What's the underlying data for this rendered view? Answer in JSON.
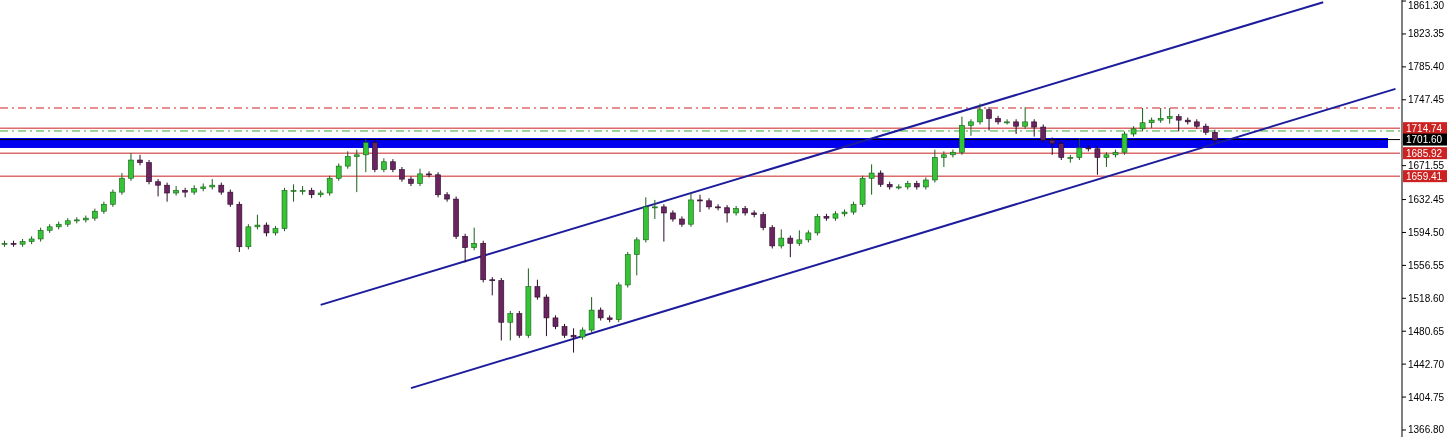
{
  "chart_data": {
    "type": "candlestick",
    "categories": [
      null,
      null,
      null,
      null,
      null,
      null,
      null,
      null,
      null,
      null,
      null,
      null,
      null,
      null,
      null,
      null,
      null,
      null,
      null,
      null,
      null,
      null,
      null,
      null,
      null,
      null,
      null,
      null,
      null,
      null,
      null,
      null,
      null,
      null,
      null,
      null,
      null,
      null,
      null,
      null,
      null,
      null,
      null,
      null,
      null,
      null,
      null,
      null,
      null,
      null,
      null,
      null,
      null,
      null,
      null,
      null,
      null,
      null,
      null,
      null,
      null,
      null,
      null,
      null,
      null,
      null,
      null,
      null,
      null,
      null,
      null,
      null,
      null,
      null,
      null,
      null,
      null,
      null,
      null,
      null,
      null,
      null,
      null,
      null,
      null,
      null,
      null,
      null,
      null,
      null,
      null,
      null,
      null,
      null,
      null,
      null,
      null,
      null,
      null,
      null,
      null,
      null,
      null,
      null,
      null,
      null,
      null,
      null,
      null,
      null,
      null,
      null,
      null,
      null,
      null,
      null,
      null,
      null,
      null,
      null,
      null,
      null,
      null,
      null,
      null,
      null,
      null,
      null,
      null,
      null,
      null,
      null,
      null,
      null,
      null,
      null,
      null,
      null,
      null,
      null,
      null,
      null,
      null,
      null,
      null,
      null,
      null,
      null,
      null,
      null,
      null,
      null,
      null,
      null,
      null
    ],
    "ohlc": [
      [
        1581,
        1585,
        1578,
        1582
      ],
      [
        1582,
        1585,
        1578,
        1581
      ],
      [
        1581,
        1587,
        1578,
        1584
      ],
      [
        1584,
        1590,
        1581,
        1587
      ],
      [
        1587,
        1600,
        1584,
        1597
      ],
      [
        1597,
        1604,
        1594,
        1601
      ],
      [
        1601,
        1607,
        1598,
        1604
      ],
      [
        1604,
        1611,
        1601,
        1608
      ],
      [
        1608,
        1612,
        1605,
        1609
      ],
      [
        1609,
        1614,
        1606,
        1611
      ],
      [
        1611,
        1622,
        1608,
        1619
      ],
      [
        1619,
        1630,
        1616,
        1627
      ],
      [
        1627,
        1644,
        1624,
        1641
      ],
      [
        1641,
        1663,
        1638,
        1657
      ],
      [
        1657,
        1686,
        1654,
        1678
      ],
      [
        1678,
        1684,
        1672,
        1675
      ],
      [
        1675,
        1678,
        1650,
        1653
      ],
      [
        1653,
        1656,
        1636,
        1649
      ],
      [
        1649,
        1652,
        1630,
        1640
      ],
      [
        1640,
        1648,
        1637,
        1643
      ],
      [
        1643,
        1646,
        1635,
        1641
      ],
      [
        1641,
        1649,
        1638,
        1645
      ],
      [
        1645,
        1651,
        1642,
        1647
      ],
      [
        1647,
        1656,
        1644,
        1649
      ],
      [
        1649,
        1652,
        1638,
        1641
      ],
      [
        1641,
        1644,
        1624,
        1627
      ],
      [
        1627,
        1630,
        1572,
        1578
      ],
      [
        1578,
        1604,
        1575,
        1601
      ],
      [
        1601,
        1615,
        1598,
        1603
      ],
      [
        1603,
        1606,
        1590,
        1594
      ],
      [
        1594,
        1602,
        1591,
        1599
      ],
      [
        1599,
        1646,
        1596,
        1643
      ],
      [
        1643,
        1650,
        1630,
        1643
      ],
      [
        1643,
        1648,
        1638,
        1643
      ],
      [
        1643,
        1646,
        1634,
        1638
      ],
      [
        1638,
        1643,
        1635,
        1640
      ],
      [
        1640,
        1660,
        1637,
        1657
      ],
      [
        1657,
        1674,
        1654,
        1671
      ],
      [
        1671,
        1688,
        1668,
        1682
      ],
      [
        1682,
        1690,
        1641,
        1684
      ],
      [
        1684,
        1702,
        1664,
        1698
      ],
      [
        1698,
        1701,
        1664,
        1667
      ],
      [
        1667,
        1680,
        1664,
        1676
      ],
      [
        1676,
        1679,
        1664,
        1667
      ],
      [
        1667,
        1670,
        1653,
        1656
      ],
      [
        1656,
        1659,
        1648,
        1651
      ],
      [
        1651,
        1668,
        1648,
        1662
      ],
      [
        1662,
        1665,
        1658,
        1661
      ],
      [
        1661,
        1664,
        1635,
        1638
      ],
      [
        1638,
        1641,
        1630,
        1633
      ],
      [
        1633,
        1636,
        1587,
        1590
      ],
      [
        1590,
        1593,
        1560,
        1577
      ],
      [
        1577,
        1600,
        1574,
        1582
      ],
      [
        1582,
        1585,
        1537,
        1540
      ],
      [
        1540,
        1543,
        1522,
        1539
      ],
      [
        1539,
        1542,
        1470,
        1491
      ],
      [
        1491,
        1504,
        1470,
        1501
      ],
      [
        1501,
        1504,
        1473,
        1476
      ],
      [
        1476,
        1553,
        1473,
        1532
      ],
      [
        1532,
        1540,
        1517,
        1520
      ],
      [
        1520,
        1523,
        1475,
        1496
      ],
      [
        1496,
        1499,
        1483,
        1486
      ],
      [
        1486,
        1489,
        1473,
        1476
      ],
      [
        1476,
        1484,
        1456,
        1474
      ],
      [
        1474,
        1485,
        1471,
        1482
      ],
      [
        1482,
        1520,
        1479,
        1505
      ],
      [
        1505,
        1508,
        1493,
        1496
      ],
      [
        1496,
        1499,
        1491,
        1494
      ],
      [
        1494,
        1537,
        1491,
        1534
      ],
      [
        1534,
        1572,
        1531,
        1569
      ],
      [
        1569,
        1589,
        1545,
        1586
      ],
      [
        1586,
        1635,
        1583,
        1624
      ],
      [
        1624,
        1632,
        1610,
        1624
      ],
      [
        1624,
        1627,
        1584,
        1617
      ],
      [
        1617,
        1620,
        1607,
        1610
      ],
      [
        1610,
        1613,
        1601,
        1604
      ],
      [
        1604,
        1640,
        1601,
        1632
      ],
      [
        1632,
        1638,
        1618,
        1631
      ],
      [
        1631,
        1634,
        1621,
        1624
      ],
      [
        1624,
        1627,
        1620,
        1623
      ],
      [
        1623,
        1626,
        1606,
        1617
      ],
      [
        1617,
        1625,
        1614,
        1622
      ],
      [
        1622,
        1625,
        1614,
        1617
      ],
      [
        1617,
        1620,
        1612,
        1615
      ],
      [
        1615,
        1618,
        1597,
        1600
      ],
      [
        1600,
        1603,
        1576,
        1579
      ],
      [
        1579,
        1598,
        1576,
        1588
      ],
      [
        1588,
        1591,
        1566,
        1582
      ],
      [
        1582,
        1597,
        1579,
        1586
      ],
      [
        1586,
        1597,
        1583,
        1594
      ],
      [
        1594,
        1616,
        1591,
        1613
      ],
      [
        1613,
        1616,
        1608,
        1611
      ],
      [
        1611,
        1619,
        1608,
        1616
      ],
      [
        1616,
        1621,
        1613,
        1618
      ],
      [
        1618,
        1630,
        1615,
        1627
      ],
      [
        1627,
        1660,
        1624,
        1657
      ],
      [
        1657,
        1673,
        1638,
        1663
      ],
      [
        1663,
        1666,
        1647,
        1650
      ],
      [
        1650,
        1653,
        1644,
        1647
      ],
      [
        1647,
        1650,
        1644,
        1647
      ],
      [
        1647,
        1654,
        1644,
        1651
      ],
      [
        1651,
        1654,
        1644,
        1647
      ],
      [
        1647,
        1658,
        1644,
        1655
      ],
      [
        1655,
        1690,
        1652,
        1681
      ],
      [
        1681,
        1688,
        1670,
        1684
      ],
      [
        1684,
        1690,
        1681,
        1687
      ],
      [
        1687,
        1728,
        1684,
        1718
      ],
      [
        1718,
        1725,
        1706,
        1722
      ],
      [
        1722,
        1743,
        1719,
        1736
      ],
      [
        1736,
        1739,
        1712,
        1726
      ],
      [
        1726,
        1729,
        1719,
        1722
      ],
      [
        1722,
        1725,
        1719,
        1722
      ],
      [
        1722,
        1725,
        1708,
        1717
      ],
      [
        1717,
        1739,
        1714,
        1722
      ],
      [
        1722,
        1725,
        1705,
        1716
      ],
      [
        1716,
        1719,
        1698,
        1701
      ],
      [
        1701,
        1704,
        1684,
        1697
      ],
      [
        1697,
        1700,
        1678,
        1681
      ],
      [
        1681,
        1684,
        1675,
        1681
      ],
      [
        1681,
        1703,
        1678,
        1692
      ],
      [
        1692,
        1695,
        1688,
        1691
      ],
      [
        1691,
        1694,
        1661,
        1681
      ],
      [
        1681,
        1687,
        1670,
        1684
      ],
      [
        1684,
        1690,
        1681,
        1687
      ],
      [
        1687,
        1711,
        1684,
        1708
      ],
      [
        1708,
        1717,
        1705,
        1714
      ],
      [
        1714,
        1738,
        1711,
        1721
      ],
      [
        1721,
        1727,
        1715,
        1724
      ],
      [
        1724,
        1738,
        1721,
        1726
      ],
      [
        1726,
        1738,
        1720,
        1728
      ],
      [
        1728,
        1731,
        1711,
        1724
      ],
      [
        1724,
        1727,
        1719,
        1722
      ],
      [
        1722,
        1725,
        1714,
        1717
      ],
      [
        1717,
        1720,
        1707,
        1710
      ],
      [
        1710,
        1713,
        1697,
        1701
      ],
      null,
      null,
      null,
      null,
      null,
      null,
      null,
      null,
      null,
      null,
      null,
      null,
      null,
      null,
      null,
      null,
      null,
      null,
      null,
      null
    ],
    "series": [
      {
        "type": "line",
        "color": "#1c1c9c",
        "values": [
          null,
          null,
          null,
          null,
          null,
          null,
          null,
          null,
          null,
          null,
          null,
          null,
          null,
          null,
          null,
          null,
          null,
          null,
          null,
          null,
          null,
          null,
          null,
          null,
          null,
          null,
          null,
          null,
          null,
          null,
          null,
          null,
          null,
          null,
          null,
          1511,
          null,
          null,
          null,
          null,
          null,
          null,
          null,
          null,
          null,
          null,
          null,
          null,
          null,
          null,
          null,
          null,
          null,
          null,
          null,
          null,
          null,
          null,
          null,
          null,
          null,
          null,
          null,
          null,
          null,
          null,
          null,
          null,
          null,
          null,
          null,
          null,
          null,
          null,
          null,
          null,
          null,
          null,
          null,
          null,
          null,
          null,
          null,
          null,
          null,
          null,
          null,
          null,
          null,
          null,
          null,
          null,
          null,
          null,
          null,
          null,
          null,
          null,
          null,
          null,
          null,
          null,
          null,
          null,
          null,
          null,
          null,
          null,
          null,
          null,
          null,
          null,
          null,
          null,
          null,
          null,
          null,
          null,
          null,
          null,
          null,
          null,
          null,
          null,
          null,
          null,
          null,
          null,
          null,
          null,
          null,
          null,
          null,
          null,
          null,
          null,
          null,
          null,
          null,
          null,
          null,
          null,
          null,
          null,
          null,
          null,
          1860,
          null,
          null,
          null,
          null,
          null,
          null,
          null,
          null
        ]
      },
      {
        "type": "line",
        "color": "#1c1c9c",
        "values": [
          null,
          null,
          null,
          null,
          null,
          null,
          null,
          null,
          null,
          null,
          null,
          null,
          null,
          null,
          null,
          null,
          null,
          null,
          null,
          null,
          null,
          null,
          null,
          null,
          null,
          null,
          null,
          null,
          null,
          null,
          null,
          null,
          null,
          null,
          null,
          null,
          null,
          null,
          null,
          null,
          null,
          null,
          null,
          null,
          null,
          1415,
          null,
          null,
          null,
          null,
          null,
          null,
          null,
          null,
          null,
          null,
          null,
          null,
          null,
          null,
          null,
          null,
          null,
          null,
          null,
          null,
          null,
          null,
          null,
          null,
          null,
          null,
          null,
          null,
          null,
          null,
          null,
          null,
          null,
          null,
          null,
          null,
          null,
          null,
          null,
          null,
          null,
          null,
          null,
          null,
          null,
          null,
          null,
          null,
          null,
          null,
          null,
          null,
          null,
          null,
          null,
          null,
          null,
          null,
          null,
          null,
          null,
          null,
          null,
          null,
          null,
          null,
          null,
          null,
          null,
          null,
          null,
          null,
          null,
          null,
          null,
          null,
          null,
          null,
          null,
          null,
          null,
          null,
          null,
          null,
          null,
          null,
          null,
          null,
          null,
          null,
          null,
          null,
          null,
          null,
          null,
          null,
          null,
          null,
          null,
          null,
          null,
          null,
          null,
          null,
          null,
          null,
          null,
          null,
          1760
        ]
      }
    ],
    "ylim": [
      1358.7,
      1862.5
    ],
    "yticks": [
      {
        "value": 1366.8,
        "label": "1366.80"
      },
      {
        "value": 1404.75,
        "label": "1404.75"
      },
      {
        "value": 1442.7,
        "label": "1442.70"
      },
      {
        "value": 1480.65,
        "label": "1480.65"
      },
      {
        "value": 1518.6,
        "label": "1518.60"
      },
      {
        "value": 1556.55,
        "label": "1556.55"
      },
      {
        "value": 1594.5,
        "label": "1594.50"
      },
      {
        "value": 1632.45,
        "label": "1632.45"
      },
      {
        "value": 1671.55,
        "label": "1671.55"
      },
      {
        "value": 1747.45,
        "label": "1747.45"
      },
      {
        "value": 1785.4,
        "label": "1785.40"
      },
      {
        "value": 1823.35,
        "label": "1823.35"
      },
      {
        "value": 1861.3,
        "label": "1861.30"
      }
    ],
    "ref_lines": [
      {
        "axis": "y",
        "value": 1738,
        "color": "#cc2222",
        "line_style": "dashed"
      },
      {
        "axis": "y",
        "value": 1714.74,
        "label": "1714.74",
        "color": "#cc2222",
        "line_style": "solid"
      },
      {
        "axis": "y",
        "value": 1711.5,
        "color": "#33aa33",
        "line_style": "dashed"
      },
      {
        "axis": "y",
        "value": 1701.6,
        "label": "1701.60",
        "color": "#000000",
        "line_style": "solid"
      },
      {
        "axis": "y",
        "value": 1685.92,
        "label": "1685.92",
        "color": "#cc2222",
        "line_style": "solid"
      },
      {
        "axis": "y",
        "value": 1659.41,
        "label": "1659.41",
        "color": "#cc2222",
        "line_style": "solid"
      }
    ],
    "bands": [
      {
        "axis": "y",
        "from": 1691.9,
        "to": 1703.4,
        "color": "#0000ee"
      }
    ],
    "grid": false
  }
}
